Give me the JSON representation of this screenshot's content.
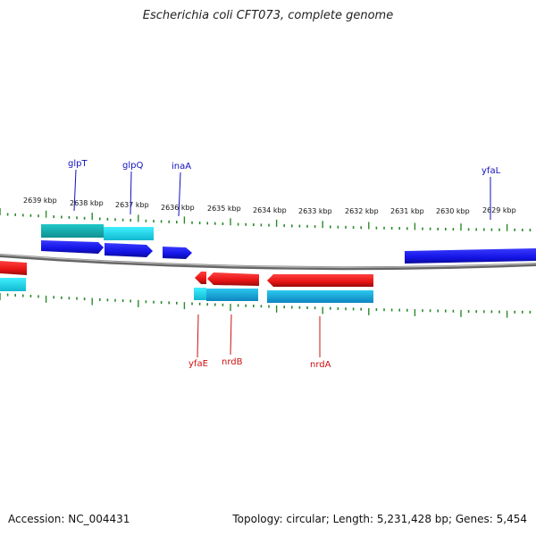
{
  "title": "Escherichia coli CFT073, complete genome",
  "footer": {
    "accession": "Accession: NC_004431",
    "info": "Topology: circular; Length: 5,231,428 bp; Genes: 5,454"
  },
  "colors": {
    "backbone": "#888888",
    "tick": "#2a8a2a",
    "forward_gene": "#1414e6",
    "reverse_gene": "#e61414",
    "cds_forward": "#22d8e8",
    "cds_reverse": "#1ab0e0",
    "label_top": "#1010c0",
    "label_bottom": "#cc1010"
  },
  "scale_labels": [
    "2639 kbp",
    "2638 kbp",
    "2637 kbp",
    "2636 kbp",
    "2635 kbp",
    "2634 kbp",
    "2633 kbp",
    "2632 kbp",
    "2631 kbp",
    "2630 kbp",
    "2629 kbp"
  ],
  "genes_top": [
    {
      "name": "glpT"
    },
    {
      "name": "glpQ"
    },
    {
      "name": "inaA"
    },
    {
      "name": "yfaL"
    }
  ],
  "genes_bottom": [
    {
      "name": "yfaE"
    },
    {
      "name": "nrdB"
    },
    {
      "name": "nrdA"
    }
  ]
}
